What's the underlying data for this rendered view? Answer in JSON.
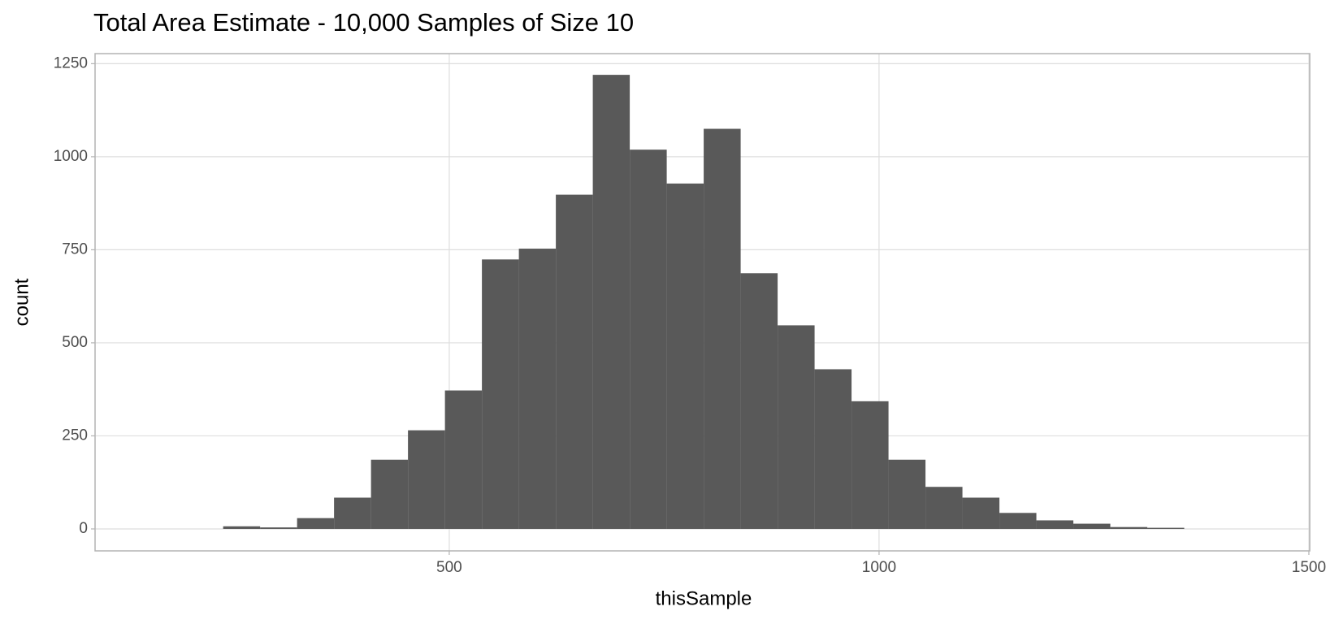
{
  "chart_data": {
    "type": "histogram",
    "title": "Total Area Estimate - 10,000 Samples of Size 10",
    "x_label": "thisSample",
    "y_label": "count",
    "bins": [
      237,
      280,
      323,
      366,
      409,
      452,
      495,
      538,
      581,
      624,
      667,
      710,
      753,
      796,
      839,
      882,
      925,
      968,
      1011,
      1054,
      1097,
      1140,
      1183,
      1226,
      1269,
      1312,
      1355
    ],
    "values": [
      7,
      4,
      29,
      84,
      186,
      265,
      372,
      724,
      753,
      898,
      1220,
      1019,
      928,
      1075,
      687,
      547,
      429,
      343,
      186,
      113,
      84,
      43,
      23,
      14,
      5,
      3
    ],
    "color": "#595959",
    "xlim": [
      88,
      1501
    ],
    "xticks": [
      500,
      1000,
      1500
    ],
    "ylim": [
      -59,
      1277
    ],
    "yticks": [
      0,
      250,
      500,
      750,
      1000,
      1250
    ],
    "grid": true
  }
}
